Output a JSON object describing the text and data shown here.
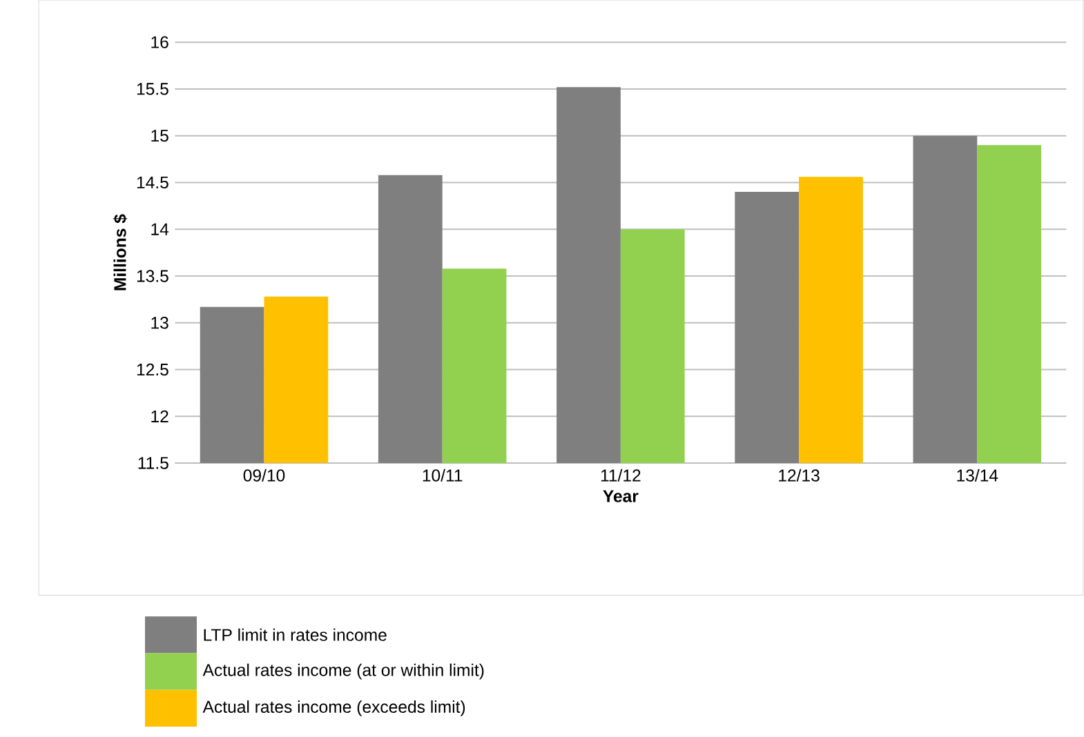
{
  "chart_data": {
    "type": "bar",
    "xlabel": "Year",
    "ylabel": "Millions $",
    "categories": [
      "09/10",
      "10/11",
      "11/12",
      "12/13",
      "13/14"
    ],
    "series": [
      {
        "name": "LTP limit in rates income",
        "color": "#7f7f7f",
        "values": [
          13.17,
          14.58,
          15.52,
          14.4,
          15.0
        ]
      },
      {
        "name": "Actual rates income (at or within limit)",
        "color": "#92d050",
        "values": [
          null,
          13.58,
          14.0,
          null,
          14.9
        ]
      },
      {
        "name": "Actual rates income (exceeds limit)",
        "color": "#ffc000",
        "values": [
          13.28,
          null,
          null,
          14.56,
          null
        ]
      }
    ],
    "ylim": [
      11.5,
      16
    ],
    "yticks": [
      11.5,
      12,
      12.5,
      13,
      13.5,
      14,
      14.5,
      15,
      15.5,
      16
    ],
    "grid": "y",
    "legend": "bottom"
  }
}
